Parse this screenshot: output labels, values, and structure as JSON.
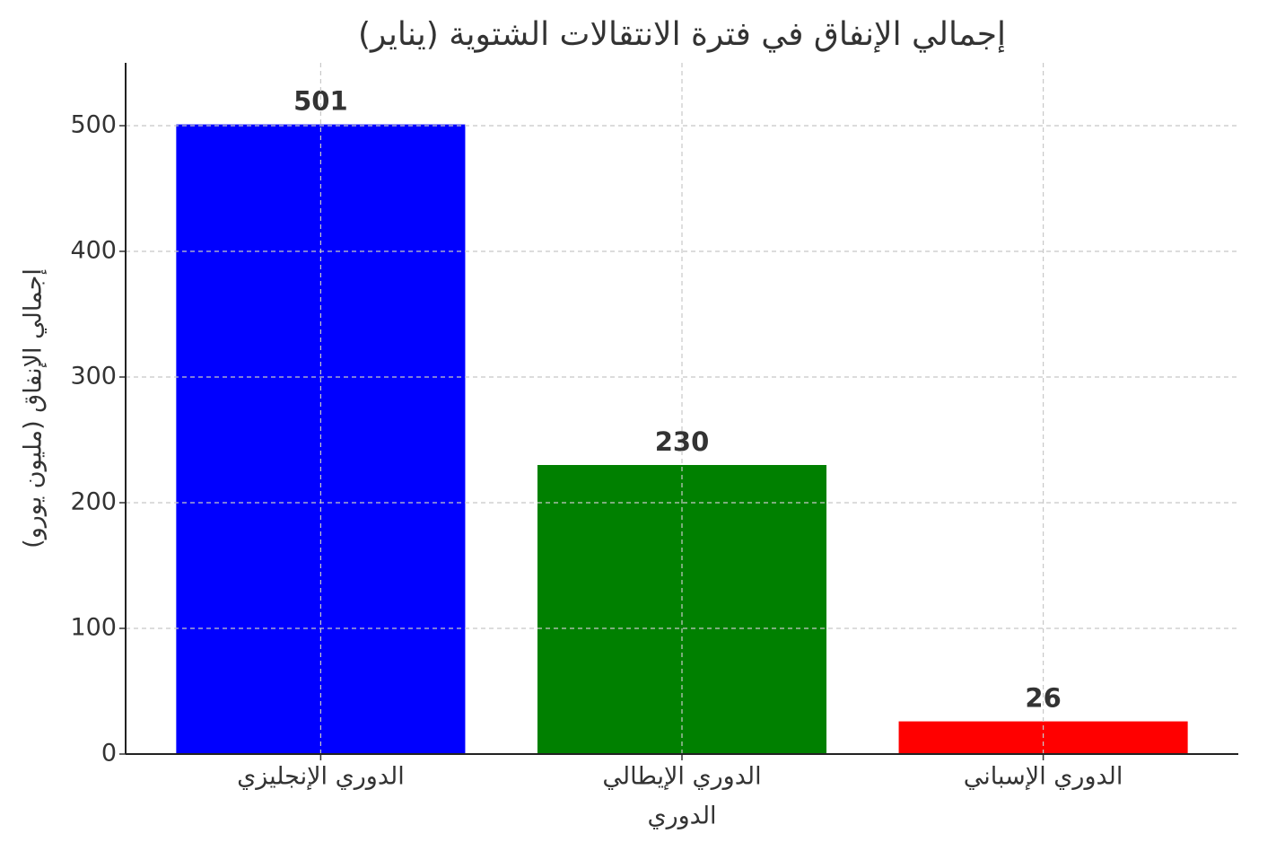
{
  "chart_data": {
    "type": "bar",
    "title": "إجمالي الإنفاق في فترة الانتقالات الشتوية (يناير)",
    "x_label": "الدوري",
    "y_label": "إجمالي الإنفاق (مليون يورو)",
    "categories": [
      "الدوري الإنجليزي",
      "الدوري الإيطالي",
      "الدوري الإسباني"
    ],
    "values": [
      501,
      230,
      26
    ],
    "colors": [
      "#0000ff",
      "#008000",
      "#ff0000"
    ],
    "ylim": [
      0,
      550
    ],
    "yticks": [
      0,
      100,
      200,
      300,
      400,
      500
    ],
    "grid": true
  }
}
